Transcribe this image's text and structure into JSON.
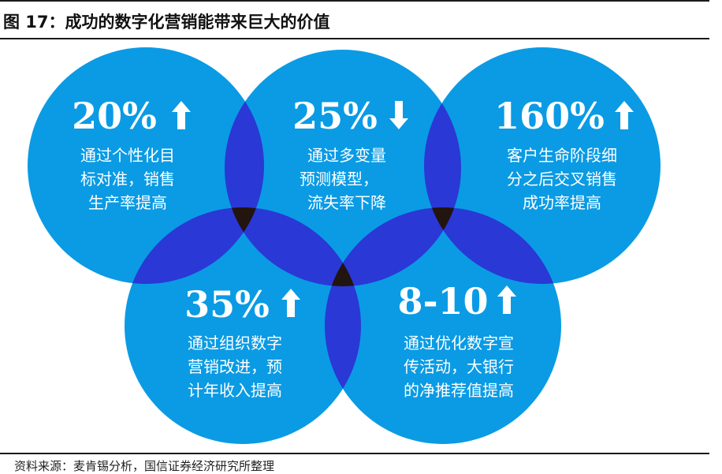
{
  "title": "图 17：成功的数字化营销能带来巨大的价值",
  "source": "资料来源：麦肯锡分析，国信证券经济研究所整理",
  "colors": {
    "circle_fill": "#0a9be4",
    "pair_overlap": "#2a38d6",
    "triple_overlap": "#22140e",
    "text": "#ffffff"
  },
  "circles": [
    {
      "value": "20%",
      "arrow": "up",
      "lines": [
        "通过个性化目",
        "标对准，销售",
        "生产率提高"
      ]
    },
    {
      "value": "25%",
      "arrow": "down",
      "lines": [
        "通过多变量",
        "预测模型，",
        "流失率下降"
      ]
    },
    {
      "value": "160%",
      "arrow": "up",
      "lines": [
        "客户生命阶段细",
        "分之后交叉销售",
        "成功率提高"
      ]
    },
    {
      "value": "35%",
      "arrow": "up",
      "lines": [
        "通过组织数字",
        "营销改进，预",
        "计年收入提高"
      ]
    },
    {
      "value": "8-10",
      "arrow": "up",
      "lines": [
        "通过优化数字宣",
        "传活动，大银行",
        "的净推荐值提高"
      ]
    }
  ]
}
